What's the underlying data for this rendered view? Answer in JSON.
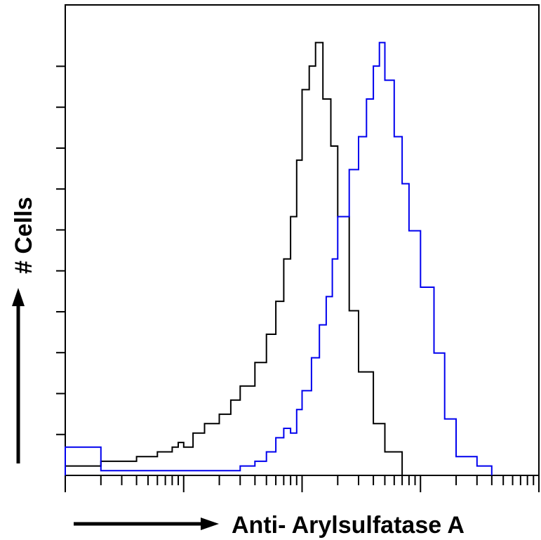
{
  "chart_data": {
    "type": "line",
    "xlabel": "Anti- Arylsulfatase A",
    "ylabel": "# Cells",
    "x_scale": "log",
    "xlim": [
      1,
      10000
    ],
    "ylim": [
      0,
      100
    ],
    "grid": false,
    "legend": "none",
    "series": [
      {
        "color": "#000000",
        "x": [
          1,
          1.5,
          2,
          3,
          4,
          5,
          6,
          7,
          8,
          9,
          10,
          12,
          15,
          20,
          25,
          30,
          40,
          50,
          60,
          70,
          80,
          90,
          100,
          115,
          130,
          150,
          175,
          200,
          250,
          300,
          400,
          500,
          700
        ],
        "y": [
          2,
          2,
          3,
          3,
          4,
          4,
          5,
          5,
          6,
          7,
          6,
          9,
          11,
          13,
          16,
          19,
          24,
          30,
          37,
          46,
          55,
          67,
          82,
          87,
          92,
          80,
          70,
          55,
          35,
          22,
          11,
          5,
          1
        ]
      },
      {
        "color": "#0000ee",
        "x": [
          1,
          2,
          5,
          10,
          20,
          30,
          40,
          50,
          60,
          70,
          80,
          90,
          100,
          120,
          140,
          160,
          180,
          200,
          250,
          300,
          350,
          400,
          450,
          500,
          600,
          700,
          800,
          1000,
          1300,
          1600,
          2000,
          3000,
          4000
        ],
        "y": [
          6,
          1,
          1,
          1,
          1,
          2,
          3,
          5,
          8,
          10,
          9,
          14,
          18,
          25,
          32,
          38,
          46,
          55,
          65,
          72,
          80,
          87,
          92,
          84,
          72,
          62,
          52,
          40,
          26,
          12,
          4,
          2,
          0
        ]
      }
    ]
  }
}
